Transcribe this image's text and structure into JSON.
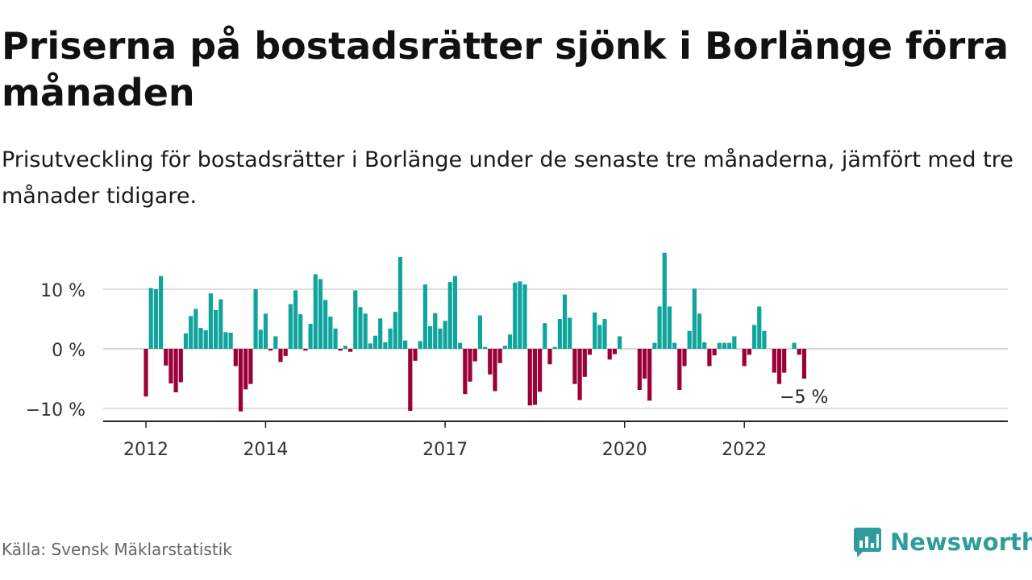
{
  "title": "Priserna på bostadsrätter sjönk i Borlänge förra månaden",
  "subtitle": "Prisutveckling för bostadsrätter i Borlänge under de senaste tre månaderna, jämfört med tre månader tidigare.",
  "source": "Källa: Svensk Mäklarstatistik",
  "brand": {
    "name": "Newsworthy",
    "icon": "newsworthy-logo-icon",
    "color": "#2e9c9a"
  },
  "colors": {
    "positive": "#10a59c",
    "negative": "#9b0039",
    "grid": "#d6d6d6",
    "axis": "#222222"
  },
  "chart_data": {
    "type": "bar",
    "title": "",
    "xlabel": "",
    "ylabel": "",
    "ylim": [
      -12,
      17
    ],
    "y_ticks": [
      {
        "value": 10,
        "label": "10 %"
      },
      {
        "value": 0,
        "label": "0 %"
      },
      {
        "value": -10,
        "label": "−10 %"
      }
    ],
    "x_ticks": [
      {
        "date": "2012-01",
        "label": "2012"
      },
      {
        "date": "2014-01",
        "label": "2014"
      },
      {
        "date": "2017-01",
        "label": "2017"
      },
      {
        "date": "2020-01",
        "label": "2020"
      },
      {
        "date": "2022-01",
        "label": "2022"
      }
    ],
    "grid": true,
    "legend": "none",
    "last_value_label": "−5 %",
    "series": [
      {
        "start": "2012-01",
        "interval": "month",
        "values": [
          -8,
          10.2,
          10,
          12.2,
          -2.8,
          -5.8,
          -7.3,
          -5.6,
          2.6,
          5.5,
          6.7,
          3.5,
          3.1,
          9.3,
          6.5,
          8.3,
          2.8,
          2.7,
          -2.9,
          -10.5,
          -6.8,
          -5.9,
          10,
          3.2,
          5.9,
          -0.3,
          2.1,
          -2.2,
          -1.2,
          7.5,
          9.8,
          5.8,
          -0.3,
          4.2,
          12.5,
          11.7,
          8.2,
          5.4,
          3.4,
          -0.3,
          0.5,
          -0.5,
          9.8,
          7,
          5.9,
          0.9,
          2.2,
          5.1,
          1.1,
          3.4,
          6.2,
          15.4,
          1.4,
          -10.4,
          -2,
          1.3,
          10.8,
          3.8,
          6,
          3.4,
          4.7,
          11.2,
          12.2,
          1,
          -7.6,
          -5.5,
          -2.1,
          5.6,
          0.3,
          -4.3,
          -7.1,
          -2.4,
          0.5,
          2.4,
          11.1,
          11.3,
          10.8,
          -9.5,
          -9.4,
          -7.2,
          4.3,
          -2.6,
          0.3,
          5,
          9.1,
          5.2,
          -5.9,
          -8.6,
          -4.7,
          -1,
          6.1,
          4,
          5,
          -1.8,
          -0.9,
          2.1,
          0,
          0,
          0,
          -6.9,
          -5,
          -8.7,
          1,
          7.1,
          16.1,
          7.1,
          1,
          -6.9,
          -2.9,
          3,
          10.1,
          5.9,
          1.1,
          -2.9,
          -1.1,
          1,
          1,
          1,
          2.1,
          0,
          -2.9,
          -1,
          4,
          7.1,
          3,
          0,
          -4,
          -5.9,
          -4,
          0,
          1,
          -1,
          -5
        ]
      }
    ]
  }
}
